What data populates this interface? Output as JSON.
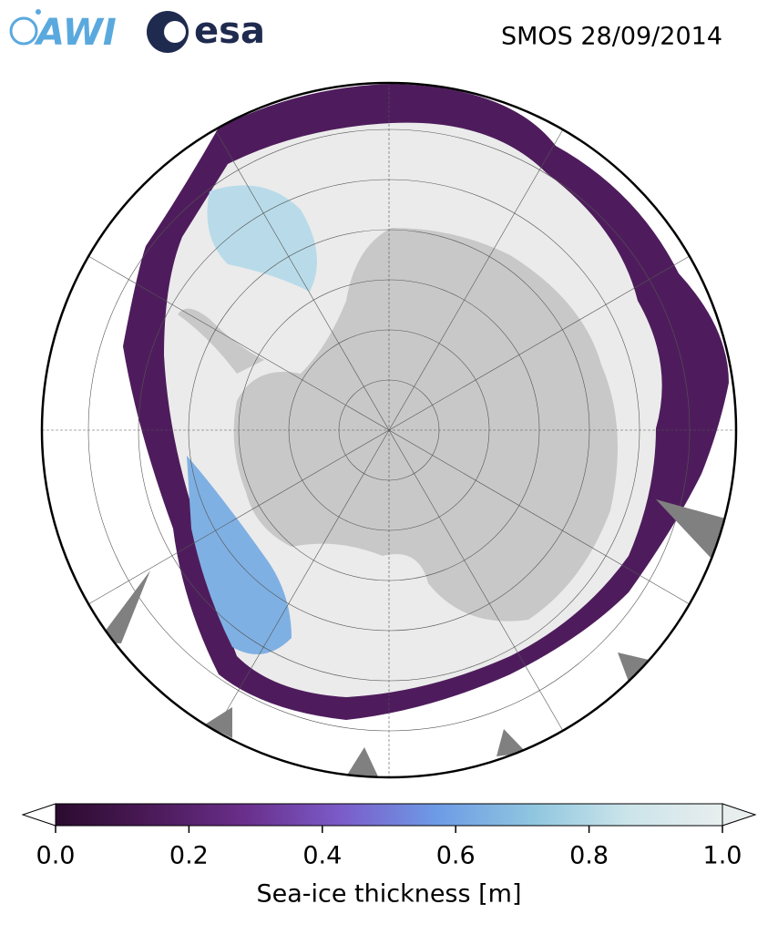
{
  "header": {
    "logos": [
      "AWI",
      "esa"
    ],
    "title": "SMOS 28/09/2014"
  },
  "colorbar": {
    "label": "Sea-ice thickness [m]",
    "lim": [
      0,
      1
    ],
    "ticks": [
      {
        "value": 0,
        "label": "0.0"
      },
      0.2,
      0.4,
      0.6,
      0.8,
      {
        "value": 1,
        "label": "1.0"
      }
    ],
    "colormap": [
      "#2b0b2f",
      "#4b1a58",
      "#6a2f8c",
      "#7b5cc9",
      "#6d9be6",
      "#8fc6df",
      "#cbe4ea",
      "#e8eeee"
    ]
  }
}
